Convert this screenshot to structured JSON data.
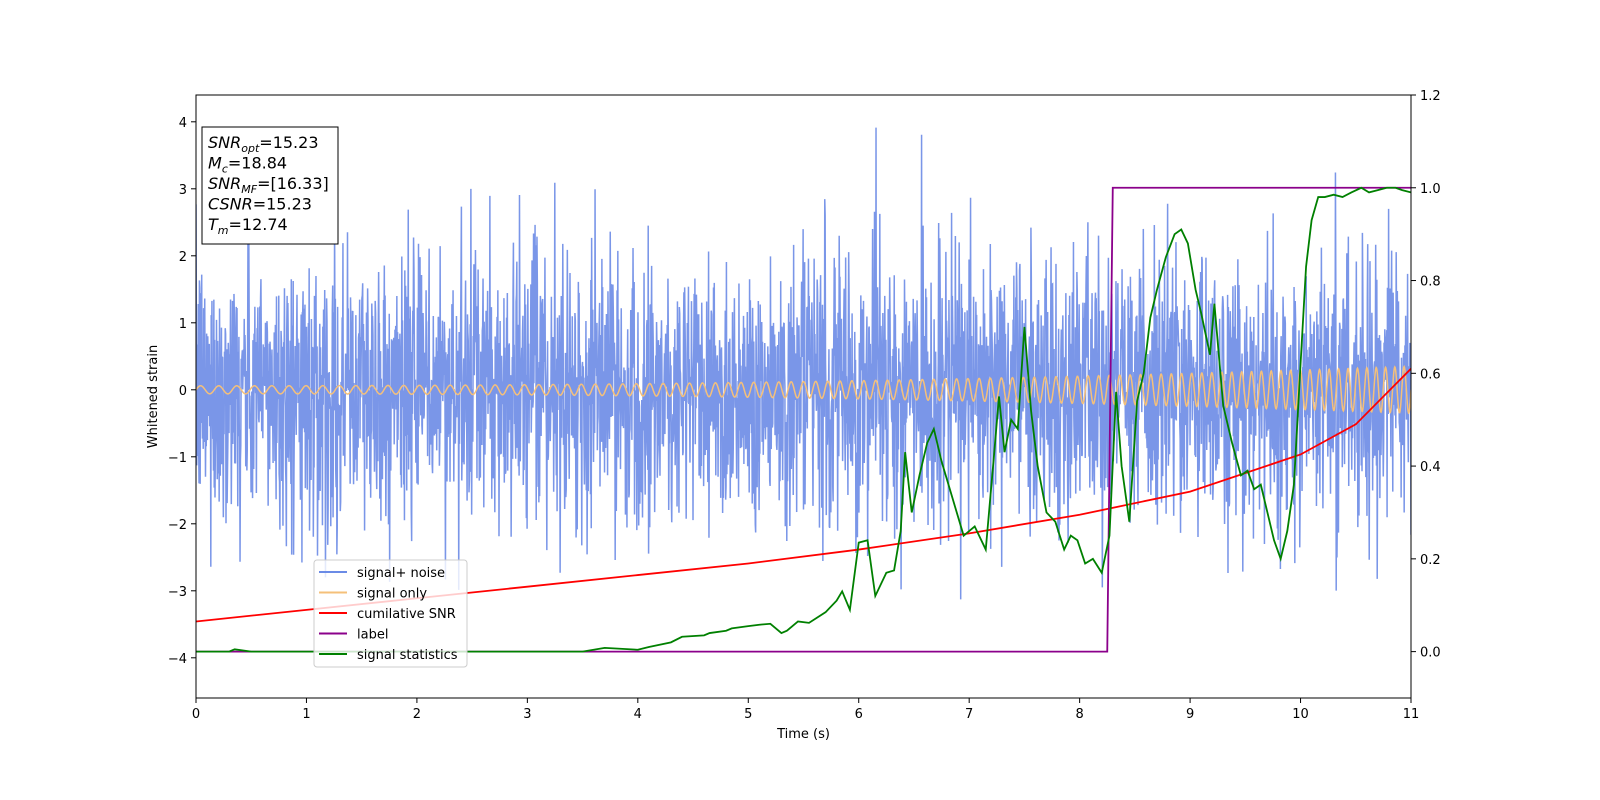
{
  "chart_data": {
    "type": "line",
    "xlabel": "Time (s)",
    "ylabel": "Whitened strain",
    "xlim": [
      0,
      11
    ],
    "ylim_left": [
      -4.6,
      4.4
    ],
    "ylim_right": [
      -0.1,
      1.2
    ],
    "x_ticks": [
      0,
      1,
      2,
      3,
      4,
      5,
      6,
      7,
      8,
      9,
      10,
      11
    ],
    "y_ticks_left": [
      -4,
      -3,
      -2,
      -1,
      0,
      1,
      2,
      3,
      4
    ],
    "y_ticks_right": [
      "0.0",
      "0.2",
      "0.4",
      "0.6",
      "0.8",
      "1.0",
      "1.2"
    ],
    "y_ticks_right_values": [
      0.0,
      0.2,
      0.4,
      0.6,
      0.8,
      1.0,
      1.2
    ],
    "grid": false,
    "legend_position": "lower-left",
    "info_box": {
      "position": "top-left",
      "lines": [
        {
          "main": "SNR",
          "sub": "opt",
          "rest": "=15.23"
        },
        {
          "main": "M",
          "sub": "c",
          "rest": "=18.84"
        },
        {
          "main": "SNR",
          "sub": "MF",
          "rest": "=[16.33]"
        },
        {
          "main": "CSNR",
          "sub": "",
          "rest": "=15.23"
        },
        {
          "main": "T",
          "sub": "m",
          "rest": "=12.74"
        }
      ]
    },
    "series": [
      {
        "name": "signal+ noise",
        "axis": "left",
        "color": "#6b8be6",
        "noise_std": 1.05,
        "noise_range": [
          -4.15,
          4.0
        ]
      },
      {
        "name": "signal only",
        "axis": "left",
        "color": "#f5c07a",
        "amplitude_start": 0.06,
        "amplitude_end": 0.35,
        "freq_start_hz": 6,
        "freq_end_hz": 12
      },
      {
        "name": "cumilative SNR",
        "axis": "right",
        "color": "#ff0000",
        "x": [
          0,
          1,
          2,
          3,
          4,
          5,
          6,
          7,
          8,
          9,
          10,
          10.5,
          11
        ],
        "y": [
          0.065,
          0.09,
          0.115,
          0.14,
          0.165,
          0.19,
          0.22,
          0.255,
          0.295,
          0.345,
          0.425,
          0.49,
          0.61
        ]
      },
      {
        "name": "label",
        "axis": "right",
        "color": "#8b008b",
        "x": [
          0,
          8.25,
          8.3,
          11
        ],
        "y": [
          0.0,
          0.0,
          1.0,
          1.0
        ]
      },
      {
        "name": "signal statistics",
        "axis": "right",
        "color": "#008000",
        "x": [
          0,
          0.3,
          0.35,
          0.5,
          1,
          2,
          3,
          3.5,
          3.7,
          4,
          4.1,
          4.3,
          4.4,
          4.6,
          4.65,
          4.8,
          4.85,
          5,
          5.1,
          5.2,
          5.3,
          5.35,
          5.45,
          5.55,
          5.7,
          5.8,
          5.85,
          5.92,
          6.0,
          6.08,
          6.15,
          6.25,
          6.32,
          6.38,
          6.42,
          6.48,
          6.55,
          6.62,
          6.68,
          6.75,
          6.85,
          6.95,
          7.05,
          7.15,
          7.22,
          7.27,
          7.32,
          7.38,
          7.44,
          7.5,
          7.56,
          7.62,
          7.7,
          7.78,
          7.86,
          7.92,
          7.98,
          8.05,
          8.12,
          8.2,
          8.27,
          8.33,
          8.38,
          8.45,
          8.52,
          8.58,
          8.64,
          8.7,
          8.78,
          8.86,
          8.92,
          8.98,
          9.05,
          9.1,
          9.18,
          9.22,
          9.3,
          9.38,
          9.46,
          9.52,
          9.58,
          9.64,
          9.7,
          9.76,
          9.82,
          9.88,
          9.94,
          10.0,
          10.05,
          10.1,
          10.16,
          10.22,
          10.3,
          10.38,
          10.46,
          10.55,
          10.62,
          10.7,
          10.78,
          10.86,
          10.92,
          11
        ],
        "y": [
          0.0,
          0.0,
          0.005,
          0.0,
          0.0,
          0.0,
          0.0,
          0.0,
          0.008,
          0.004,
          0.01,
          0.02,
          0.032,
          0.035,
          0.04,
          0.045,
          0.05,
          0.055,
          0.058,
          0.06,
          0.04,
          0.045,
          0.065,
          0.062,
          0.085,
          0.11,
          0.13,
          0.09,
          0.235,
          0.24,
          0.12,
          0.17,
          0.175,
          0.26,
          0.43,
          0.3,
          0.38,
          0.45,
          0.48,
          0.41,
          0.33,
          0.25,
          0.27,
          0.22,
          0.41,
          0.55,
          0.43,
          0.5,
          0.48,
          0.7,
          0.52,
          0.4,
          0.3,
          0.28,
          0.22,
          0.25,
          0.24,
          0.19,
          0.2,
          0.17,
          0.25,
          0.56,
          0.4,
          0.28,
          0.54,
          0.6,
          0.72,
          0.78,
          0.85,
          0.9,
          0.91,
          0.88,
          0.78,
          0.73,
          0.64,
          0.75,
          0.53,
          0.45,
          0.38,
          0.39,
          0.35,
          0.36,
          0.3,
          0.24,
          0.2,
          0.26,
          0.36,
          0.62,
          0.83,
          0.93,
          0.98,
          0.98,
          0.985,
          0.98,
          0.99,
          1.0,
          0.99,
          0.995,
          1.0,
          1.0,
          0.995,
          0.99
        ]
      }
    ]
  }
}
